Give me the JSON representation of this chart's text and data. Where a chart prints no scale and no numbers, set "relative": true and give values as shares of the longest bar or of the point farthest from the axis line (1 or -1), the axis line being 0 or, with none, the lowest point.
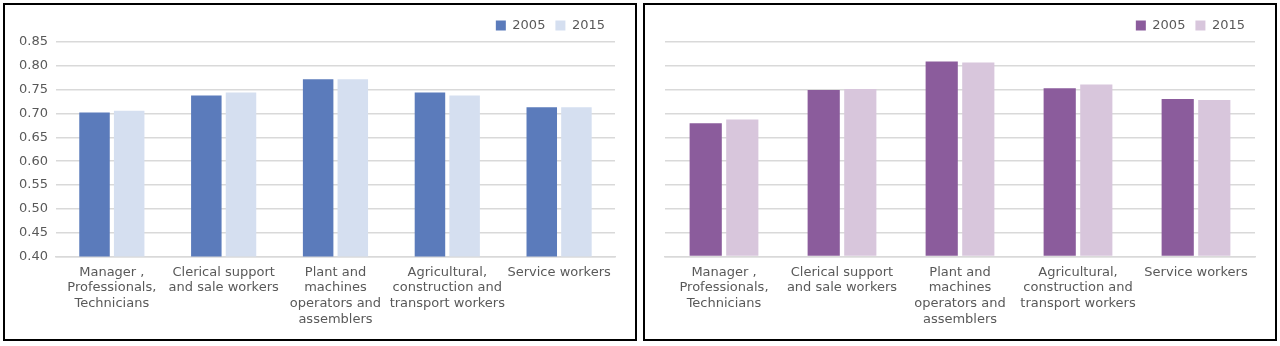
{
  "chart_data": [
    {
      "type": "bar",
      "categories": [
        "Manager , Professionals, Technicians",
        "Clerical support and sale workers",
        "Plant and machines operators and assemblers",
        "Agricultural, construction and transport workers",
        "Service workers"
      ],
      "series": [
        {
          "name": "2005",
          "color": "#5b7bbb",
          "values": [
            0.702,
            0.738,
            0.772,
            0.744,
            0.713
          ]
        },
        {
          "name": "2015",
          "color": "#d5dff0",
          "values": [
            0.706,
            0.744,
            0.772,
            0.738,
            0.713
          ]
        }
      ],
      "ylim": [
        0.4,
        0.85
      ],
      "yticks": [
        {
          "value": 0.4,
          "label": "0.40"
        },
        {
          "value": 0.45,
          "label": "0.45"
        },
        {
          "value": 0.5,
          "label": "0.50"
        },
        {
          "value": 0.55,
          "label": "0.55"
        },
        {
          "value": 0.6,
          "label": "0.60"
        },
        {
          "value": 0.65,
          "label": "0.65"
        },
        {
          "value": 0.7,
          "label": "0.70"
        },
        {
          "value": 0.75,
          "label": "0.75"
        },
        {
          "value": 0.8,
          "label": "0.80"
        },
        {
          "value": 0.85,
          "label": "0.85"
        }
      ],
      "grid": "y",
      "legend": "top right"
    },
    {
      "type": "bar",
      "relative": true,
      "categories": [
        "Manager , Professionals, Technicians",
        "Clerical support and sale workers",
        "Plant and machines operators and assemblers",
        "Agricultural, construction and transport workers",
        "Service workers"
      ],
      "series": [
        {
          "name": "2005",
          "color": "#8b5c9c",
          "values": [
            0.684,
            0.854,
            1,
            0.863,
            0.808
          ]
        },
        {
          "name": "2015",
          "color": "#d8c6dc",
          "values": [
            0.703,
            0.859,
            0.995,
            0.882,
            0.803
          ]
        }
      ],
      "grid": "y",
      "legend": "top right"
    }
  ]
}
